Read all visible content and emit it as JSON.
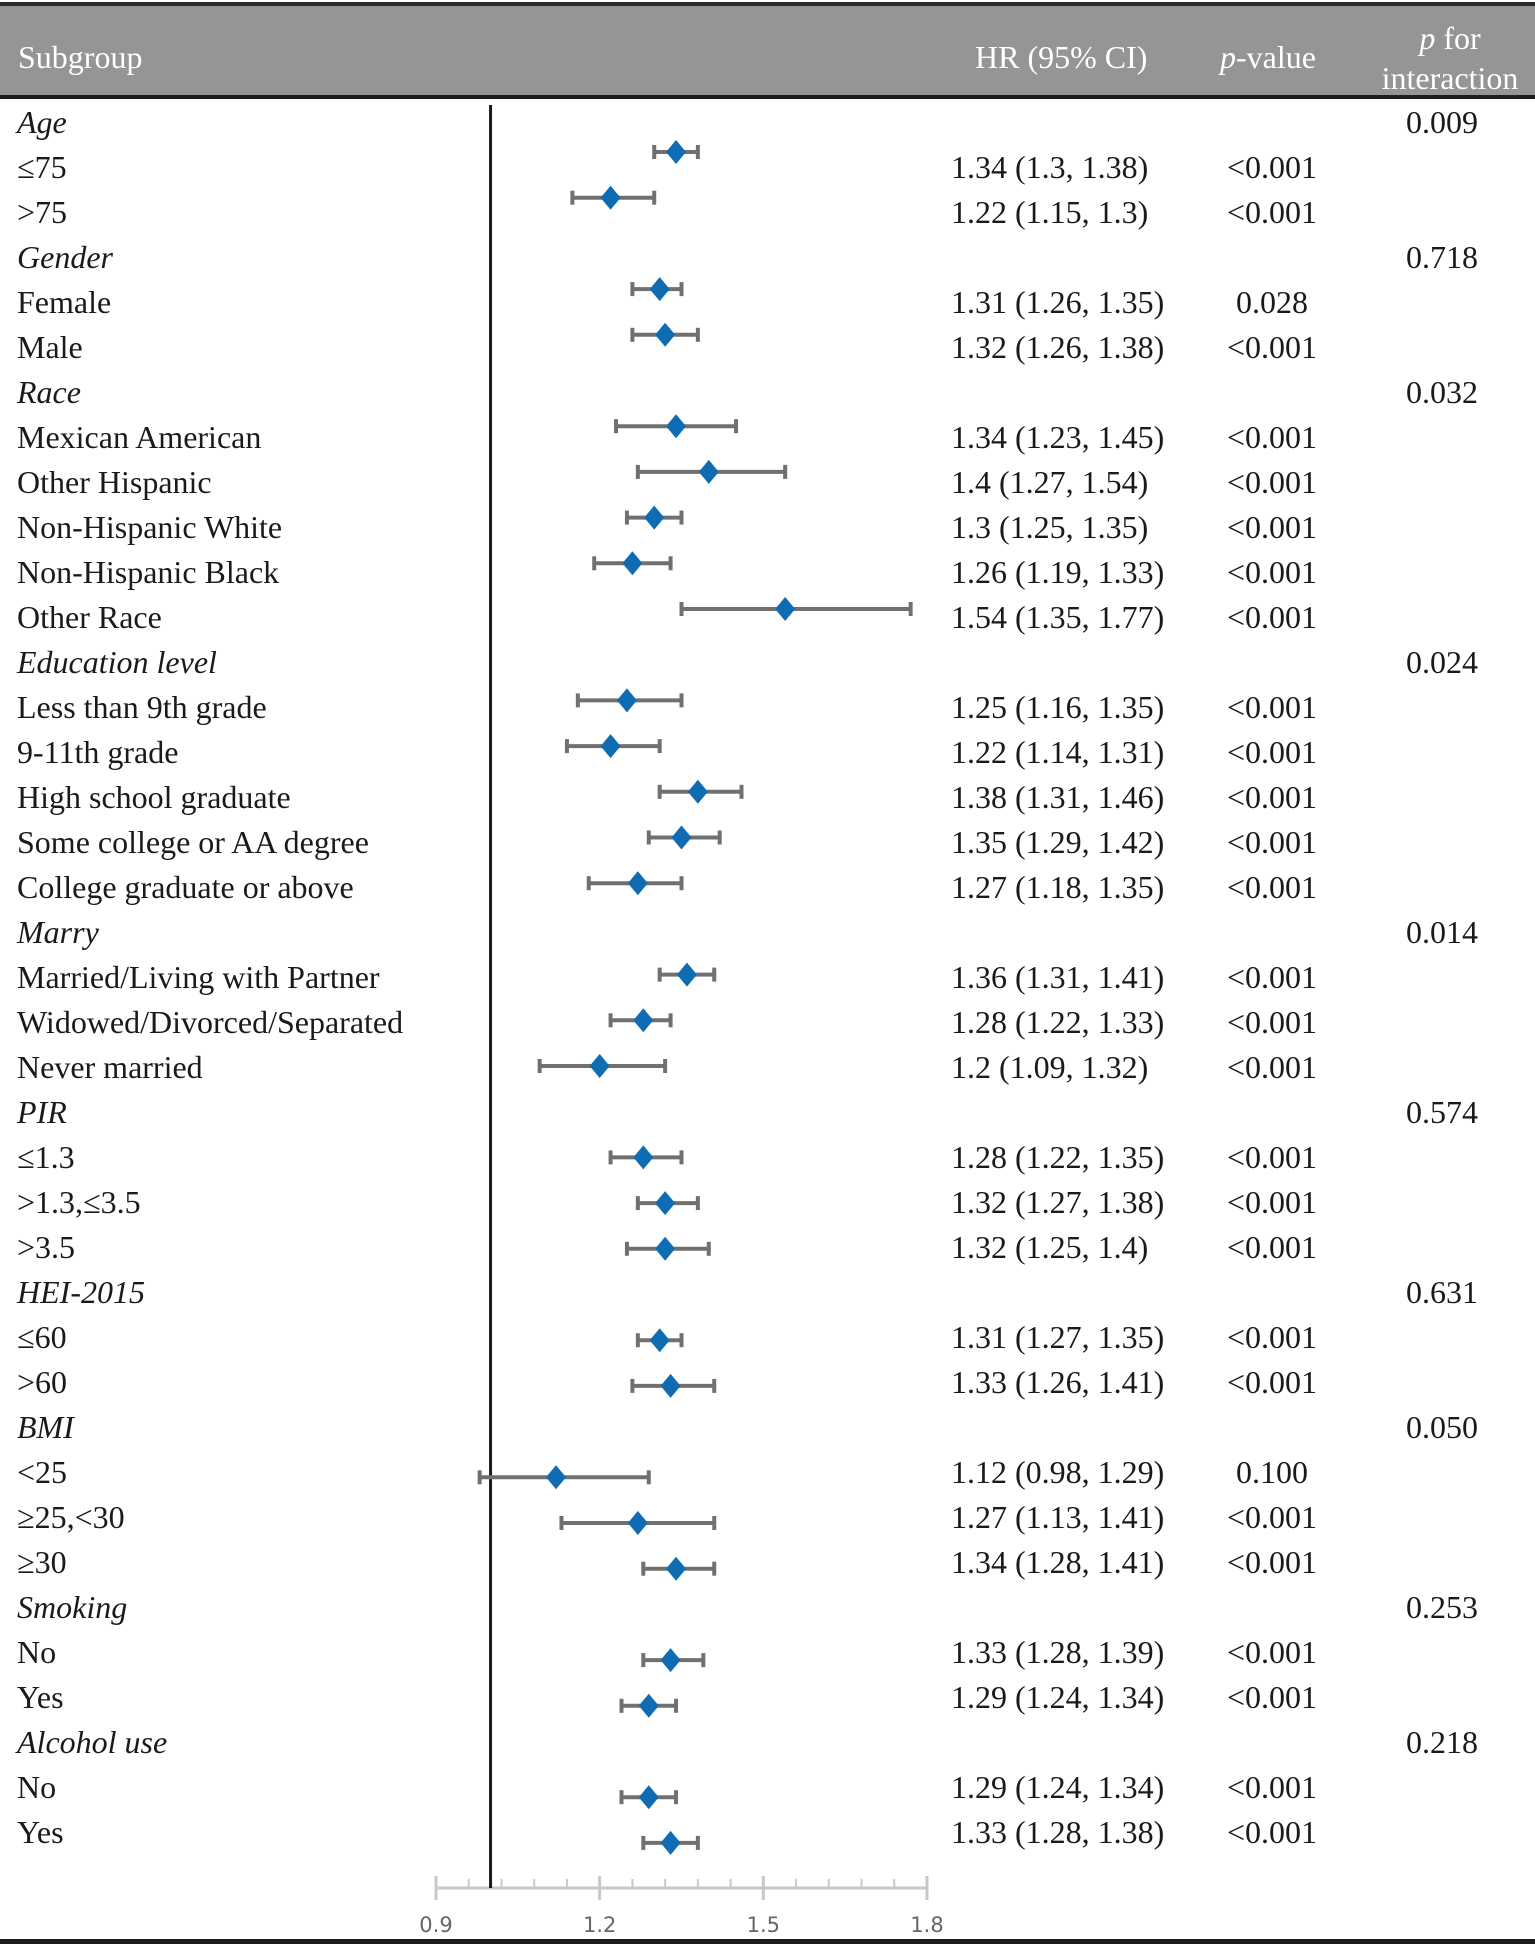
{
  "header": {
    "subgroup": "Subgroup",
    "hr": "HR (95% CI)",
    "p_value_italic": "p",
    "p_value_rest": "-value",
    "p_interaction_italic": "p",
    "p_interaction_rest1": " for",
    "p_interaction_rest2": "interaction"
  },
  "rows": [
    {
      "label": "Age",
      "group": true,
      "p_interaction": "0.009"
    },
    {
      "label": "≤75",
      "hr_text": "1.34 (1.3, 1.38)",
      "p": "<0.001"
    },
    {
      "label": ">75",
      "hr_text": "1.22 (1.15, 1.3)",
      "p": "<0.001"
    },
    {
      "label": "Gender",
      "group": true,
      "p_interaction": "0.718"
    },
    {
      "label": "Female",
      "hr_text": "1.31 (1.26, 1.35)",
      "p": "0.028"
    },
    {
      "label": "Male",
      "hr_text": "1.32 (1.26, 1.38)",
      "p": "<0.001"
    },
    {
      "label": "Race",
      "group": true,
      "p_interaction": "0.032"
    },
    {
      "label": "Mexican American",
      "hr_text": "1.34 (1.23, 1.45)",
      "p": "<0.001"
    },
    {
      "label": "Other Hispanic",
      "hr_text": "1.4 (1.27, 1.54)",
      "p": "<0.001"
    },
    {
      "label": "Non-Hispanic White",
      "hr_text": "1.3 (1.25, 1.35)",
      "p": "<0.001"
    },
    {
      "label": "Non-Hispanic Black",
      "hr_text": "1.26 (1.19, 1.33)",
      "p": "<0.001"
    },
    {
      "label": "Other Race",
      "hr_text": "1.54 (1.35, 1.77)",
      "p": "<0.001"
    },
    {
      "label": "Education level",
      "group": true,
      "p_interaction": "0.024"
    },
    {
      "label": "Less than 9th grade",
      "hr_text": "1.25 (1.16, 1.35)",
      "p": "<0.001"
    },
    {
      "label": "9-11th grade",
      "hr_text": "1.22 (1.14, 1.31)",
      "p": "<0.001"
    },
    {
      "label": "High school graduate",
      "hr_text": "1.38 (1.31, 1.46)",
      "p": "<0.001"
    },
    {
      "label": "Some college or AA degree",
      "hr_text": "1.35 (1.29, 1.42)",
      "p": "<0.001"
    },
    {
      "label": "College graduate or above",
      "hr_text": "1.27 (1.18, 1.35)",
      "p": "<0.001"
    },
    {
      "label": "Marry",
      "group": true,
      "p_interaction": "0.014"
    },
    {
      "label": "Married/Living with Partner",
      "hr_text": "1.36 (1.31, 1.41)",
      "p": "<0.001"
    },
    {
      "label": "Widowed/Divorced/Separated",
      "hr_text": "1.28 (1.22, 1.33)",
      "p": "<0.001"
    },
    {
      "label": "Never married",
      "hr_text": "1.2 (1.09, 1.32)",
      "p": "<0.001"
    },
    {
      "label": "PIR",
      "group": true,
      "p_interaction": "0.574"
    },
    {
      "label": "≤1.3",
      "hr_text": "1.28 (1.22, 1.35)",
      "p": "<0.001"
    },
    {
      "label": ">1.3,≤3.5",
      "hr_text": "1.32 (1.27, 1.38)",
      "p": "<0.001"
    },
    {
      "label": ">3.5",
      "hr_text": "1.32 (1.25, 1.4)",
      "p": "<0.001"
    },
    {
      "label": "HEI-2015",
      "group": true,
      "p_interaction": "0.631"
    },
    {
      "label": "≤60",
      "hr_text": "1.31 (1.27, 1.35)",
      "p": "<0.001"
    },
    {
      "label": ">60",
      "hr_text": "1.33 (1.26, 1.41)",
      "p": "<0.001"
    },
    {
      "label": "BMI",
      "group": true,
      "p_interaction": "0.050"
    },
    {
      "label": "<25",
      "hr_text": "1.12 (0.98, 1.29)",
      "p": "0.100"
    },
    {
      "label": "≥25,<30",
      "hr_text": "1.27 (1.13, 1.41)",
      "p": "<0.001"
    },
    {
      "label": "≥30",
      "hr_text": "1.34 (1.28, 1.41)",
      "p": "<0.001"
    },
    {
      "label": "Smoking",
      "group": true,
      "p_interaction": "0.253"
    },
    {
      "label": "No",
      "hr_text": "1.33 (1.28, 1.39)",
      "p": "<0.001"
    },
    {
      "label": "Yes",
      "hr_text": "1.29 (1.24, 1.34)",
      "p": "<0.001"
    },
    {
      "label": "Alcohol use",
      "group": true,
      "p_interaction": "0.218"
    },
    {
      "label": "No",
      "hr_text": "1.29 (1.24, 1.34)",
      "p": "<0.001"
    },
    {
      "label": "Yes",
      "hr_text": "1.33 (1.28, 1.38)",
      "p": "<0.001"
    }
  ],
  "chart_data": {
    "type": "scatter",
    "subtype": "forest",
    "title": "",
    "xlabel": "",
    "ylabel": "",
    "xlim": [
      0.9,
      1.8
    ],
    "reference_line": 1.0,
    "x_ticks": [
      0.9,
      1.2,
      1.5,
      1.8
    ],
    "x_tick_labels": [
      "0.9",
      "1.2",
      "1.5",
      "1.8"
    ],
    "minor_tick_step": 0.06,
    "grid": false,
    "colors": {
      "marker": "#0f6cb3",
      "whisker": "#707070",
      "axis": "#c8c8c8",
      "reference": "#1a1a1a"
    },
    "points": [
      {
        "row": 1,
        "hr": 1.34,
        "lower": 1.3,
        "upper": 1.38
      },
      {
        "row": 2,
        "hr": 1.22,
        "lower": 1.15,
        "upper": 1.3
      },
      {
        "row": 4,
        "hr": 1.31,
        "lower": 1.26,
        "upper": 1.35
      },
      {
        "row": 5,
        "hr": 1.32,
        "lower": 1.26,
        "upper": 1.38
      },
      {
        "row": 7,
        "hr": 1.34,
        "lower": 1.23,
        "upper": 1.45
      },
      {
        "row": 8,
        "hr": 1.4,
        "lower": 1.27,
        "upper": 1.54
      },
      {
        "row": 9,
        "hr": 1.3,
        "lower": 1.25,
        "upper": 1.35
      },
      {
        "row": 10,
        "hr": 1.26,
        "lower": 1.19,
        "upper": 1.33
      },
      {
        "row": 11,
        "hr": 1.54,
        "lower": 1.35,
        "upper": 1.77
      },
      {
        "row": 13,
        "hr": 1.25,
        "lower": 1.16,
        "upper": 1.35
      },
      {
        "row": 14,
        "hr": 1.22,
        "lower": 1.14,
        "upper": 1.31
      },
      {
        "row": 15,
        "hr": 1.38,
        "lower": 1.31,
        "upper": 1.46
      },
      {
        "row": 16,
        "hr": 1.35,
        "lower": 1.29,
        "upper": 1.42
      },
      {
        "row": 17,
        "hr": 1.27,
        "lower": 1.18,
        "upper": 1.35
      },
      {
        "row": 19,
        "hr": 1.36,
        "lower": 1.31,
        "upper": 1.41
      },
      {
        "row": 20,
        "hr": 1.28,
        "lower": 1.22,
        "upper": 1.33
      },
      {
        "row": 21,
        "hr": 1.2,
        "lower": 1.09,
        "upper": 1.32
      },
      {
        "row": 23,
        "hr": 1.28,
        "lower": 1.22,
        "upper": 1.35
      },
      {
        "row": 24,
        "hr": 1.32,
        "lower": 1.27,
        "upper": 1.38
      },
      {
        "row": 25,
        "hr": 1.32,
        "lower": 1.25,
        "upper": 1.4
      },
      {
        "row": 27,
        "hr": 1.31,
        "lower": 1.27,
        "upper": 1.35
      },
      {
        "row": 28,
        "hr": 1.33,
        "lower": 1.26,
        "upper": 1.41
      },
      {
        "row": 30,
        "hr": 1.12,
        "lower": 0.98,
        "upper": 1.29
      },
      {
        "row": 31,
        "hr": 1.27,
        "lower": 1.13,
        "upper": 1.41
      },
      {
        "row": 32,
        "hr": 1.34,
        "lower": 1.28,
        "upper": 1.41
      },
      {
        "row": 34,
        "hr": 1.33,
        "lower": 1.28,
        "upper": 1.39
      },
      {
        "row": 35,
        "hr": 1.29,
        "lower": 1.24,
        "upper": 1.34
      },
      {
        "row": 37,
        "hr": 1.29,
        "lower": 1.24,
        "upper": 1.34
      },
      {
        "row": 38,
        "hr": 1.33,
        "lower": 1.28,
        "upper": 1.38
      }
    ]
  }
}
